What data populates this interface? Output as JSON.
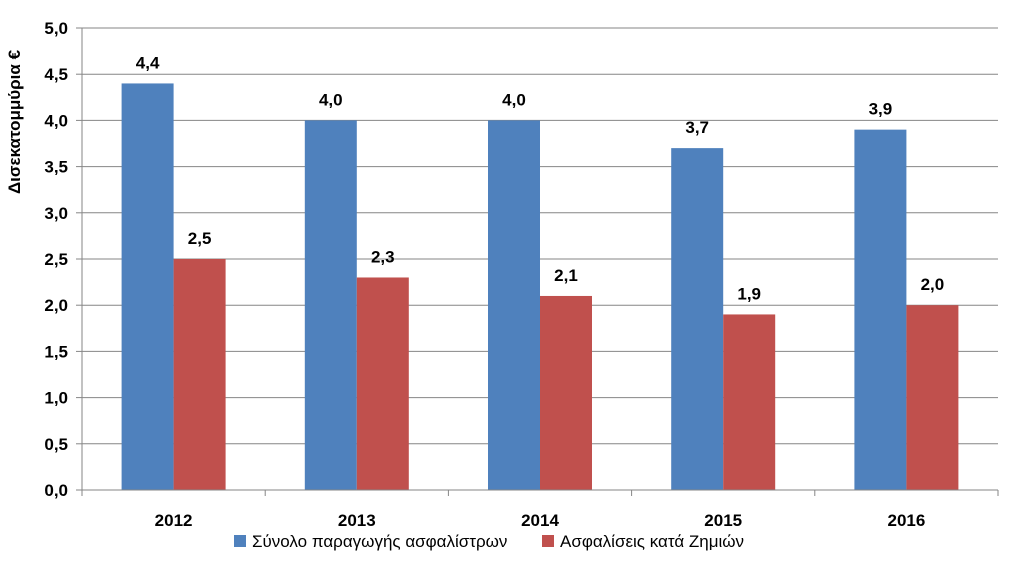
{
  "chart_data": {
    "type": "bar",
    "categories": [
      "2012",
      "2013",
      "2014",
      "2015",
      "2016"
    ],
    "series": [
      {
        "name": "Σύνολο παραγωγής ασφαλίστρων",
        "values": [
          4.4,
          4.0,
          4.0,
          3.7,
          3.9
        ],
        "labels": [
          "4,4",
          "4,0",
          "4,0",
          "3,7",
          "3,9"
        ],
        "color": "#4F81BD"
      },
      {
        "name": "Ασφαλίσεις κατά Ζημιών",
        "values": [
          2.5,
          2.3,
          2.1,
          1.9,
          2.0
        ],
        "labels": [
          "2,5",
          "2,3",
          "2,1",
          "1,9",
          "2,0"
        ],
        "color": "#C0504D"
      }
    ],
    "ylabel": "Δισεκατομμύρια €",
    "xlabel": "",
    "ylim": [
      0,
      5
    ],
    "yticks": [
      "0,0",
      "0,5",
      "1,0",
      "1,5",
      "2,0",
      "2,5",
      "3,0",
      "3,5",
      "4,0",
      "4,5",
      "5,0"
    ],
    "grid": true,
    "legend_position": "bottom"
  }
}
